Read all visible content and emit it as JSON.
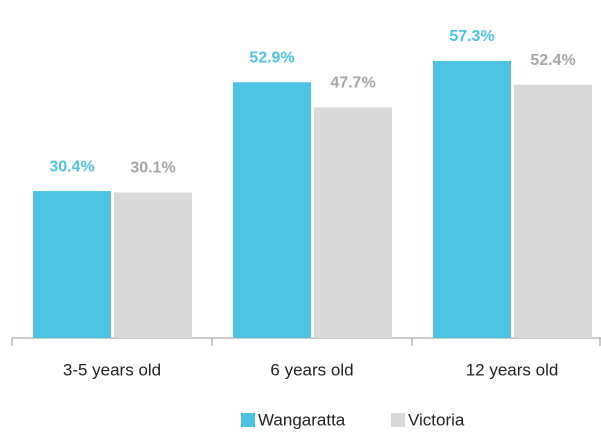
{
  "chart_data": {
    "type": "bar",
    "categories": [
      "3-5 years old",
      "6 years old",
      "12 years old"
    ],
    "series": [
      {
        "name": "Wangaratta",
        "color": "#4dc3e3",
        "label_color": "#4dc3e3",
        "values": [
          30.4,
          52.9,
          57.3
        ],
        "value_labels": [
          "30.4%",
          "52.9%",
          "57.3%"
        ]
      },
      {
        "name": "Victoria",
        "color": "#d9d9d9",
        "label_color": "#a6a6a6",
        "values": [
          30.1,
          47.7,
          52.4
        ],
        "value_labels": [
          "30.1%",
          "47.7%",
          "52.4%"
        ]
      }
    ],
    "legend": "bottom"
  }
}
